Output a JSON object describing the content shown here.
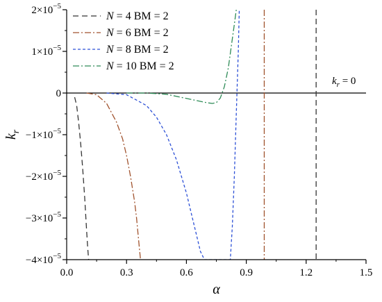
{
  "chart_data": {
    "type": "line",
    "xlabel": "α",
    "ylabel": "k",
    "ylabel_sub": "r",
    "xlim": [
      0.0,
      1.5
    ],
    "ylim": [
      -4e-05,
      2e-05
    ],
    "x_ticks": [
      0.0,
      0.3,
      0.6,
      0.9,
      1.2,
      1.5
    ],
    "x_tick_labels": [
      "0.0",
      "0.3",
      "0.6",
      "0.9",
      "1.2",
      "1.5"
    ],
    "y_ticks": [
      2e-05,
      1e-05,
      0,
      -1e-05,
      -2e-05,
      -3e-05,
      -4e-05
    ],
    "y_tick_labels": [
      {
        "pre": "2×10",
        "exp": "−5"
      },
      {
        "pre": "1×10",
        "exp": "−5"
      },
      {
        "pre": "0",
        "exp": ""
      },
      {
        "pre": "−1×10",
        "exp": "−5"
      },
      {
        "pre": "−2×10",
        "exp": "−5"
      },
      {
        "pre": "−3×10",
        "exp": "−5"
      },
      {
        "pre": "−4×10",
        "exp": "−5"
      }
    ],
    "grid": false,
    "legend_position": "top-left",
    "series": [
      {
        "name": "N = 4   BM = 2",
        "name_parts": [
          "N",
          " = 4   BM = 2"
        ],
        "color": "#333333",
        "dash": "8,5",
        "x": [
          0.04,
          0.05,
          0.06,
          0.07,
          0.08,
          0.09,
          0.095,
          0.1,
          0.105,
          0.11
        ],
        "y": [
          -1e-06,
          -3e-06,
          -7e-06,
          -1.2e-05,
          -1.8e-05,
          -2.5e-05,
          -2.9e-05,
          -3.3e-05,
          -3.7e-05,
          -4e-05
        ],
        "vline_x": 1.25
      },
      {
        "name": "N = 6   BM = 2",
        "name_parts": [
          "N",
          " = 6   BM = 2"
        ],
        "color": "#a0522d",
        "dash": "9,3,2,3",
        "x": [
          0.1,
          0.15,
          0.2,
          0.25,
          0.28,
          0.3,
          0.32,
          0.34,
          0.35,
          0.36,
          0.37
        ],
        "y": [
          0,
          -4e-07,
          -2.5e-06,
          -7e-06,
          -1.1e-05,
          -1.5e-05,
          -2e-05,
          -2.6e-05,
          -3e-05,
          -3.5e-05,
          -4e-05
        ],
        "vline_x": 0.99
      },
      {
        "name": "N = 8   BM = 2",
        "name_parts": [
          "N",
          " = 8   BM = 2"
        ],
        "color": "#2b4fd6",
        "dash": "4,3",
        "x": [
          0.2,
          0.3,
          0.4,
          0.45,
          0.5,
          0.55,
          0.6,
          0.63,
          0.65,
          0.67,
          0.69,
          0.82,
          0.83,
          0.84,
          0.85,
          0.86,
          0.865
        ],
        "y": [
          0,
          -4e-07,
          -3e-06,
          -5.8e-06,
          -1e-05,
          -1.6e-05,
          -2.4e-05,
          -3e-05,
          -3.4e-05,
          -3.8e-05,
          -4e-05,
          -4e-05,
          -3.2e-05,
          -2e-05,
          -5e-06,
          1e-05,
          2e-05
        ]
      },
      {
        "name": "N = 10 BM = 2",
        "name_parts": [
          "N",
          " = 10 BM = 2"
        ],
        "color": "#2e8b57",
        "dash": "9,3,2,3",
        "x": [
          0.3,
          0.4,
          0.5,
          0.55,
          0.6,
          0.65,
          0.7,
          0.73,
          0.75,
          0.77,
          0.79,
          0.81,
          0.82,
          0.83,
          0.84,
          0.85
        ],
        "y": [
          0,
          0,
          -3e-07,
          -8e-07,
          -1.3e-06,
          -1.8e-06,
          -2.3e-06,
          -2.5e-06,
          -2.3e-06,
          -1.2e-06,
          1.5e-06,
          6e-06,
          9.5e-06,
          1.3e-05,
          1.65e-05,
          2e-05
        ]
      }
    ],
    "annotations": [
      {
        "text_main": "k",
        "text_sub": "r",
        "text_rest": " = 0",
        "y": 0
      }
    ]
  }
}
